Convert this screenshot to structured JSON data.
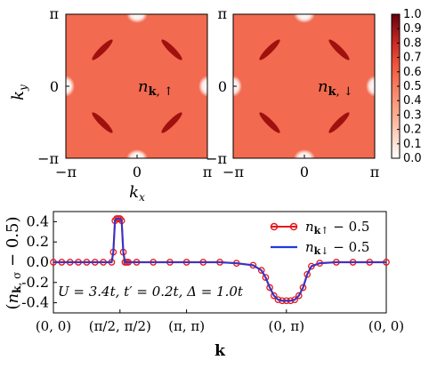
{
  "chart_data": [
    {
      "type": "heatmap",
      "panel": "upper-left",
      "annotation": "n_k,↑",
      "xlim": [
        -3.14159,
        3.14159
      ],
      "ylim": [
        -3.14159,
        3.14159
      ],
      "xticks": [
        "−π",
        "0",
        "π"
      ],
      "yticks": [
        "−π",
        "0",
        "π"
      ],
      "xlabel": "k_x",
      "ylabel": "k_y",
      "background_value": 0.65,
      "features": [
        {
          "kind": "pocket",
          "kx": -1.57,
          "ky": 1.57,
          "value": 1.0
        },
        {
          "kind": "pocket",
          "kx": 1.57,
          "ky": 1.57,
          "value": 1.0
        },
        {
          "kind": "pocket",
          "kx": -1.57,
          "ky": -1.57,
          "value": 1.0
        },
        {
          "kind": "pocket",
          "kx": 1.57,
          "ky": -1.57,
          "value": 1.0
        },
        {
          "kind": "depletion",
          "kx": 0.0,
          "ky": 3.14159,
          "value": 0.1
        },
        {
          "kind": "depletion",
          "kx": 0.0,
          "ky": -3.14159,
          "value": 0.1
        },
        {
          "kind": "depletion",
          "kx": 3.14159,
          "ky": 0.0,
          "value": 0.1
        },
        {
          "kind": "depletion",
          "kx": -3.14159,
          "ky": 0.0,
          "value": 0.1
        }
      ]
    },
    {
      "type": "heatmap",
      "panel": "upper-right",
      "annotation": "n_k,↓",
      "xlim": [
        -3.14159,
        3.14159
      ],
      "ylim": [
        -3.14159,
        3.14159
      ],
      "xticks": [
        "−π",
        "0",
        "π"
      ],
      "yticks": [
        "−π",
        "0",
        "π"
      ],
      "background_value": 0.65,
      "features": [
        {
          "kind": "pocket",
          "kx": -1.57,
          "ky": 1.57,
          "value": 1.0
        },
        {
          "kind": "pocket",
          "kx": 1.57,
          "ky": 1.57,
          "value": 1.0
        },
        {
          "kind": "pocket",
          "kx": -1.57,
          "ky": -1.57,
          "value": 1.0
        },
        {
          "kind": "pocket",
          "kx": 1.57,
          "ky": -1.57,
          "value": 1.0
        },
        {
          "kind": "depletion",
          "kx": 0.0,
          "ky": 3.14159,
          "value": 0.1
        },
        {
          "kind": "depletion",
          "kx": 0.0,
          "ky": -3.14159,
          "value": 0.1
        },
        {
          "kind": "depletion",
          "kx": 3.14159,
          "ky": 0.0,
          "value": 0.1
        },
        {
          "kind": "depletion",
          "kx": -3.14159,
          "ky": 0.0,
          "value": 0.1
        }
      ]
    },
    {
      "type": "colorbar",
      "range": [
        0.0,
        1.0
      ],
      "ticks": [
        "1.0",
        "0.9",
        "0.8",
        "0.7",
        "0.6",
        "0.5",
        "0.4",
        "0.3",
        "0.2",
        "0.1",
        "0.0"
      ],
      "colors": {
        "low": "#ffffff",
        "mid": "#f46f50",
        "high": "#67000d"
      }
    },
    {
      "type": "line",
      "panel": "bottom",
      "xlabel": "k",
      "ylabel": "(n_k,σ − 0.5)",
      "xticks": [
        "(0, 0)",
        "(π/2, π/2)",
        "(π, π)",
        "(0, π)",
        "(0, 0)"
      ],
      "xtick_positions": [
        0,
        0.8,
        1.6,
        2.8,
        4.0
      ],
      "xlim": [
        0,
        4.0
      ],
      "ylim": [
        -0.5,
        0.5
      ],
      "yticks": [
        0.4,
        0.2,
        0.0,
        -0.2,
        -0.4
      ],
      "annotation": "U = 3.4t, t′ = 0.2t, Δ = 1.0t",
      "legend": "top-right",
      "series": [
        {
          "name": "n_k↑ − 0.5",
          "color": "#e31a1c",
          "marker": "circle",
          "x": [
            0,
            0.1,
            0.2,
            0.3,
            0.4,
            0.5,
            0.6,
            0.7,
            0.72,
            0.74,
            0.76,
            0.78,
            0.8,
            0.82,
            0.84,
            0.86,
            0.88,
            0.9,
            1.0,
            1.2,
            1.4,
            1.6,
            1.8,
            2.0,
            2.2,
            2.4,
            2.5,
            2.55,
            2.6,
            2.65,
            2.7,
            2.75,
            2.8,
            2.85,
            2.9,
            2.95,
            3.0,
            3.05,
            3.1,
            3.2,
            3.4,
            3.6,
            3.8,
            4.0
          ],
          "y": [
            0.0,
            0.0,
            0.0,
            0.0,
            0.0,
            0.0,
            0.0,
            0.0,
            0.1,
            0.41,
            0.43,
            0.43,
            0.43,
            0.41,
            0.1,
            0.0,
            0.0,
            0.0,
            0.0,
            0.0,
            0.0,
            0.0,
            0.0,
            0.0,
            -0.01,
            -0.03,
            -0.08,
            -0.15,
            -0.25,
            -0.33,
            -0.37,
            -0.38,
            -0.38,
            -0.38,
            -0.37,
            -0.33,
            -0.25,
            -0.12,
            -0.04,
            -0.01,
            0.0,
            0.0,
            0.0,
            0.0
          ]
        },
        {
          "name": "n_k↓ − 0.5",
          "color": "#1f3be0",
          "marker": "none",
          "x": [
            0,
            0.1,
            0.2,
            0.3,
            0.4,
            0.5,
            0.6,
            0.7,
            0.72,
            0.74,
            0.76,
            0.78,
            0.8,
            0.82,
            0.84,
            0.86,
            0.88,
            0.9,
            1.0,
            1.2,
            1.4,
            1.6,
            1.8,
            2.0,
            2.2,
            2.4,
            2.5,
            2.55,
            2.6,
            2.65,
            2.7,
            2.75,
            2.8,
            2.85,
            2.9,
            2.95,
            3.0,
            3.05,
            3.1,
            3.2,
            3.4,
            3.6,
            3.8,
            4.0
          ],
          "y": [
            0.0,
            0.0,
            0.0,
            0.0,
            0.0,
            0.0,
            0.0,
            0.0,
            0.1,
            0.41,
            0.43,
            0.43,
            0.43,
            0.41,
            0.1,
            0.0,
            0.0,
            0.0,
            0.0,
            0.0,
            0.0,
            0.0,
            0.0,
            0.0,
            -0.01,
            -0.03,
            -0.08,
            -0.15,
            -0.25,
            -0.33,
            -0.37,
            -0.38,
            -0.38,
            -0.38,
            -0.37,
            -0.33,
            -0.25,
            -0.12,
            -0.04,
            -0.01,
            0.0,
            0.0,
            0.0,
            0.0
          ]
        }
      ]
    }
  ]
}
